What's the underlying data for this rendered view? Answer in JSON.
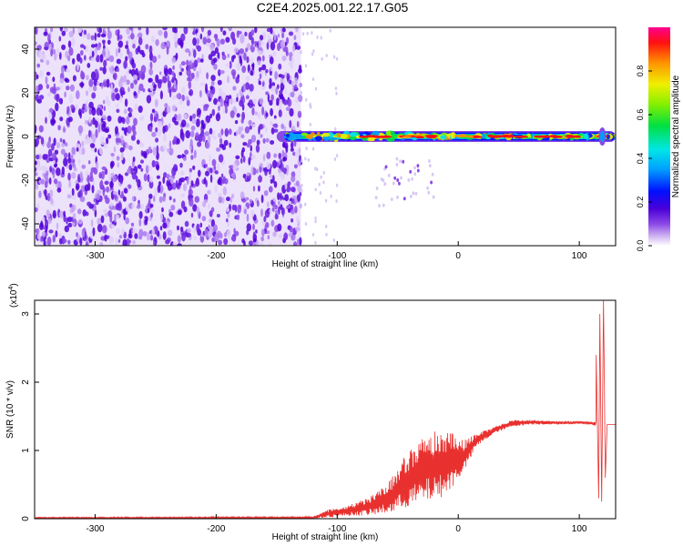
{
  "title": "C2E4.2025.001.22.17.G05",
  "chart_data": [
    {
      "type": "heatmap",
      "xlabel": "Height of straight line (km)",
      "ylabel": "Frequency (Hz)",
      "xlim": [
        -350,
        130
      ],
      "ylim": [
        -50,
        50
      ],
      "xticks": [
        -300,
        -200,
        -100,
        0,
        100
      ],
      "yticks": [
        -40,
        -20,
        0,
        20,
        40
      ],
      "colorbar": {
        "label": "Normalized spectral amplitude",
        "range": [
          0,
          1
        ],
        "ticks": [
          0.0,
          0.2,
          0.4,
          0.6,
          0.8
        ],
        "colors": [
          "#ffffff",
          "#b48cf0",
          "#5000d8",
          "#0010ff",
          "#00a0ff",
          "#00e6e6",
          "#00e040",
          "#88f000",
          "#f0f000",
          "#ff9000",
          "#ff1010",
          "#ff00a0"
        ]
      },
      "features": {
        "noise_region_x": [
          -350,
          -130
        ],
        "signal_band_center_hz": 0,
        "signal_band_start_x": -150
      },
      "grid": false
    },
    {
      "type": "line",
      "xlabel": "Height of straight line (km)",
      "ylabel": "SNR (10 * v/v)",
      "y_multiplier_label": "(x10",
      "y_multiplier_exp": "4",
      "y_multiplier_close": ")",
      "xlim": [
        -350,
        130
      ],
      "ylim": [
        0,
        3.2
      ],
      "xticks": [
        -300,
        -200,
        -100,
        0,
        100
      ],
      "yticks": [
        0,
        1,
        2,
        3
      ],
      "color": "#e8312f",
      "envelope": {
        "x": [
          -350,
          -120,
          -105,
          -90,
          -70,
          -55,
          -45,
          -35,
          -25,
          -15,
          -5,
          5,
          15,
          30,
          45,
          60,
          80,
          100,
          110,
          114
        ],
        "lower": [
          0.0,
          0.0,
          0.02,
          0.04,
          0.05,
          0.08,
          0.15,
          0.2,
          0.25,
          0.3,
          0.45,
          0.7,
          1.05,
          1.25,
          1.35,
          1.38,
          1.38,
          1.39,
          1.38,
          1.35
        ],
        "upper": [
          0.02,
          0.03,
          0.15,
          0.2,
          0.35,
          0.6,
          0.9,
          1.1,
          1.25,
          1.3,
          1.25,
          1.15,
          1.25,
          1.35,
          1.45,
          1.45,
          1.43,
          1.43,
          1.42,
          1.42
        ]
      },
      "spikes": [
        {
          "x": 114,
          "y": 2.4
        },
        {
          "x": 116,
          "y": 0.3
        },
        {
          "x": 117,
          "y": 3.0
        },
        {
          "x": 118.5,
          "y": 0.25
        },
        {
          "x": 120,
          "y": 3.2
        },
        {
          "x": 121.5,
          "y": 0.6
        },
        {
          "x": 123,
          "y": 1.38
        },
        {
          "x": 130,
          "y": 1.38
        }
      ],
      "grid": false
    }
  ]
}
